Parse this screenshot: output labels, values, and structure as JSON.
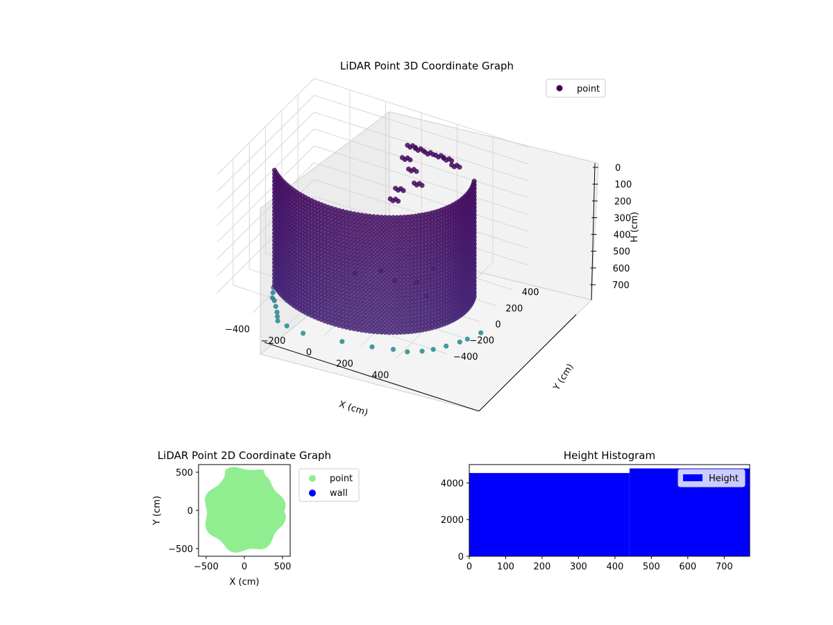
{
  "chart_data": [
    {
      "type": "scatter",
      "projection": "3d",
      "title": "LiDAR Point 3D Coordinate Graph",
      "xlabel": "X (cm)",
      "ylabel": "Y (cm)",
      "zlabel": "H (cm)",
      "xlim": [
        -600,
        600
      ],
      "ylim": [
        -600,
        600
      ],
      "zlim": [
        750,
        0
      ],
      "x_ticks": [
        "−400",
        "−200",
        "0",
        "200",
        "400"
      ],
      "y_ticks": [
        "−400",
        "−200",
        "0",
        "200",
        "400"
      ],
      "z_ticks": [
        "0",
        "100",
        "200",
        "300",
        "400",
        "500",
        "600",
        "700"
      ],
      "colormap": "viridis",
      "grid": true,
      "legend": {
        "position": "top-right",
        "entries": [
          {
            "label": "point",
            "color": "#440154"
          }
        ]
      },
      "series": [
        {
          "name": "point",
          "description_of_shape": "cylindrical wall arc plus ceiling cluster and scattered floor points"
        }
      ],
      "wall_arc": {
        "angle_start_deg": 200,
        "angle_end_deg": 360,
        "radius": 520,
        "height_top": 0,
        "height_bottom": 750
      },
      "ceiling_cluster": [
        {
          "x": 40,
          "y": 380,
          "h": 80
        },
        {
          "x": 80,
          "y": 390,
          "h": 90
        },
        {
          "x": 130,
          "y": 400,
          "h": 100
        },
        {
          "x": 180,
          "y": 420,
          "h": 110
        },
        {
          "x": 220,
          "y": 430,
          "h": 120
        },
        {
          "x": 260,
          "y": 440,
          "h": 150
        },
        {
          "x": 20,
          "y": 360,
          "h": 150
        },
        {
          "x": 60,
          "y": 350,
          "h": 200
        },
        {
          "x": 100,
          "y": 330,
          "h": 260
        },
        {
          "x": 0,
          "y": 320,
          "h": 320
        },
        {
          "x": -20,
          "y": 300,
          "h": 380
        }
      ],
      "scattered_points": [
        {
          "x": -420,
          "y": -300,
          "h": 750
        },
        {
          "x": -400,
          "y": -350,
          "h": 750
        },
        {
          "x": -380,
          "y": -400,
          "h": 750
        },
        {
          "x": -360,
          "y": -420,
          "h": 750
        },
        {
          "x": -330,
          "y": -470,
          "h": 750
        },
        {
          "x": -300,
          "y": -520,
          "h": 750
        },
        {
          "x": -280,
          "y": -560,
          "h": 750
        },
        {
          "x": -260,
          "y": -600,
          "h": 750
        },
        {
          "x": -200,
          "y": -620,
          "h": 750
        },
        {
          "x": -100,
          "y": -640,
          "h": 750
        },
        {
          "x": 100,
          "y": -600,
          "h": 750
        },
        {
          "x": 250,
          "y": -560,
          "h": 750
        },
        {
          "x": 350,
          "y": -520,
          "h": 750
        },
        {
          "x": 420,
          "y": -500,
          "h": 750
        },
        {
          "x": 480,
          "y": -450,
          "h": 750
        },
        {
          "x": 520,
          "y": -400,
          "h": 750
        },
        {
          "x": 560,
          "y": -330,
          "h": 750
        },
        {
          "x": 600,
          "y": -250,
          "h": 750
        },
        {
          "x": 620,
          "y": -200,
          "h": 750
        },
        {
          "x": 650,
          "y": -100,
          "h": 750
        },
        {
          "x": 0,
          "y": 100,
          "h": 700
        },
        {
          "x": 100,
          "y": 50,
          "h": 700
        },
        {
          "x": 200,
          "y": 100,
          "h": 700
        },
        {
          "x": 300,
          "y": 0,
          "h": 700
        },
        {
          "x": -100,
          "y": 0,
          "h": 700
        },
        {
          "x": 250,
          "y": 200,
          "h": 650
        }
      ]
    },
    {
      "type": "scatter",
      "title": "LiDAR Point 2D Coordinate Graph",
      "xlabel": "X (cm)",
      "ylabel": "Y (cm)",
      "xlim": [
        -600,
        600
      ],
      "ylim": [
        -600,
        600
      ],
      "x_ticks": [
        "−500",
        "0",
        "500"
      ],
      "y_ticks": [
        "500",
        "0",
        "−500"
      ],
      "legend": {
        "position": "outside-right",
        "entries": [
          {
            "label": "point",
            "color": "#90ee90"
          },
          {
            "label": "wall",
            "color": "#0000ff"
          }
        ]
      },
      "point_region": {
        "description_of_shape": "dense filled disc of radius ~520 centered near origin",
        "center": [
          0,
          -20
        ],
        "radius": 520
      }
    },
    {
      "type": "bar",
      "title": "Height Histogram",
      "xlim": [
        0,
        770
      ],
      "ylim": [
        0,
        5000
      ],
      "x_ticks": [
        "0",
        "100",
        "200",
        "300",
        "400",
        "500",
        "600",
        "700"
      ],
      "y_ticks": [
        "0",
        "2000",
        "4000"
      ],
      "legend": {
        "position": "top-right",
        "entries": [
          {
            "label": "Height",
            "color": "#0000ff"
          }
        ]
      },
      "bins": [
        {
          "x_start": 0,
          "x_end": 440,
          "count": 4540
        },
        {
          "x_start": 440,
          "x_end": 770,
          "count": 4790
        }
      ]
    }
  ]
}
